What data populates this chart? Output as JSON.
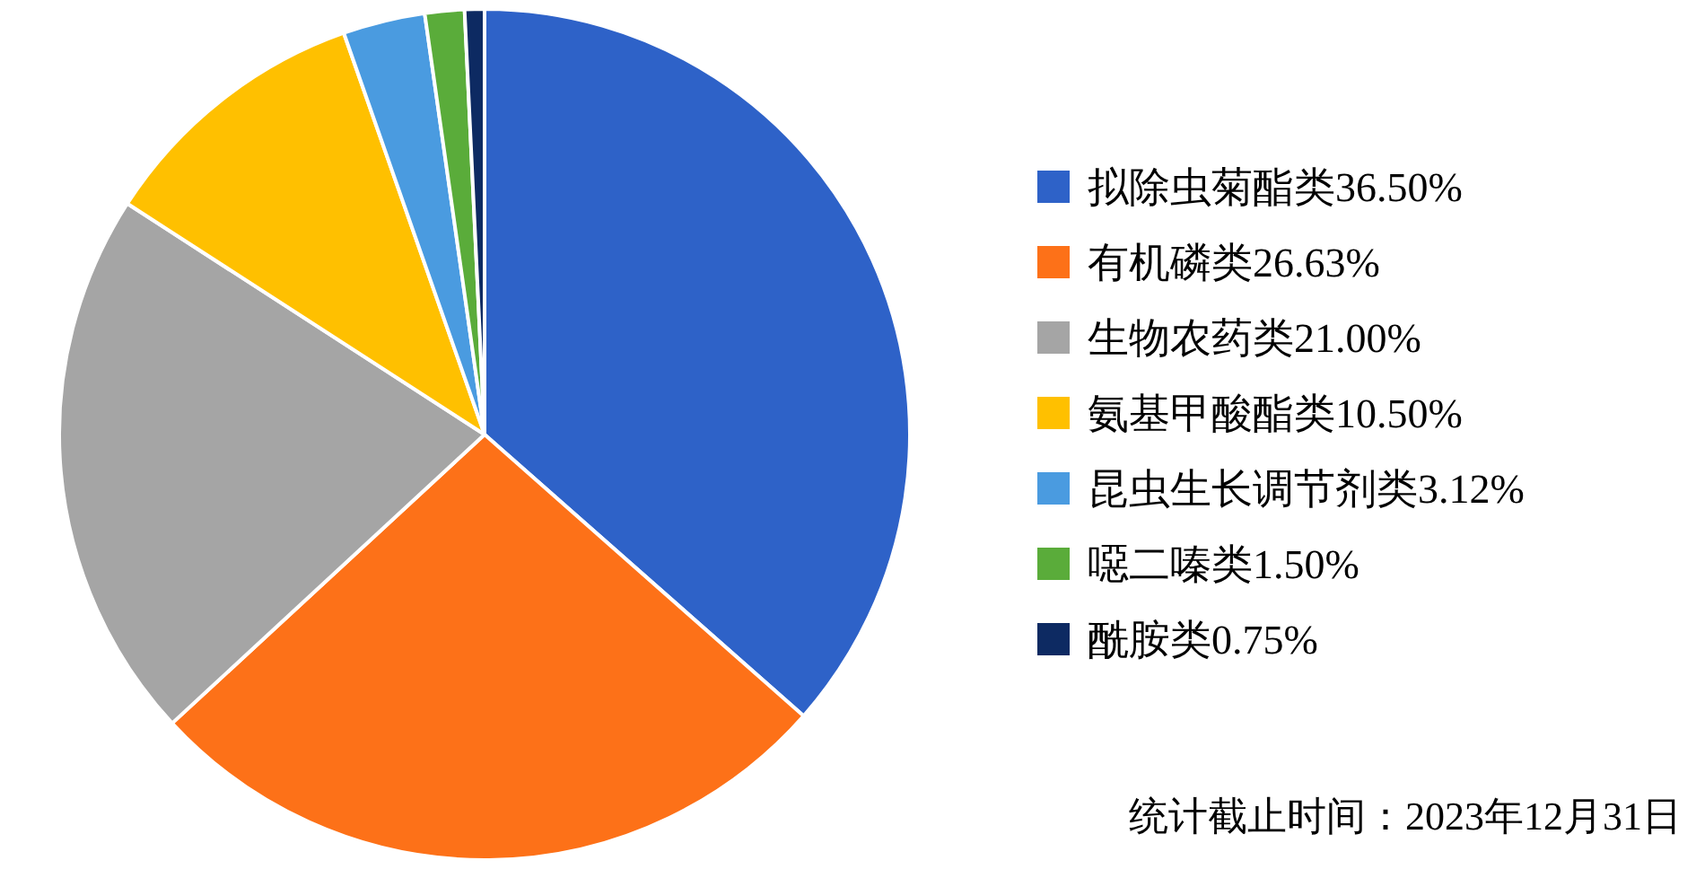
{
  "chart_data": {
    "type": "pie",
    "categories": [
      "拟除虫菊酯类36.50%",
      "有机磷类26.63%",
      "生物农药类21.00%",
      "氨基甲酸酯类10.50%",
      "昆虫生长调节剂类3.12%",
      "噁二嗪类1.50%",
      "酰胺类0.75%"
    ],
    "values": [
      36.5,
      26.63,
      21.0,
      10.5,
      3.12,
      1.5,
      0.75
    ],
    "colors": [
      "#2e62c8",
      "#fd7118",
      "#a5a5a5",
      "#ffc000",
      "#4a9be0",
      "#5aac3a",
      "#0d2a62"
    ],
    "legend": "right",
    "annotations": [
      "统计截止时间：2023年12月31日"
    ]
  }
}
